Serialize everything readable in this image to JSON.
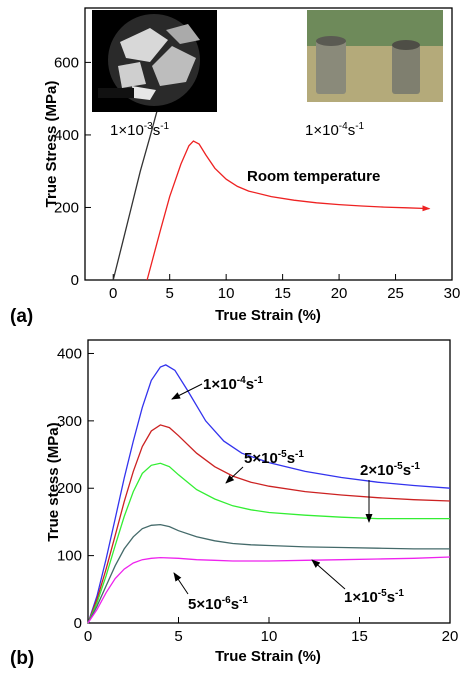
{
  "chart_data": [
    {
      "panel_label": "(a)",
      "type": "line",
      "xlabel": "True Strain (%)",
      "ylabel": "True Stress (MPa)",
      "xlim": [
        -2.5,
        30
      ],
      "ylim": [
        0,
        750
      ],
      "xticks": [
        0,
        5,
        10,
        15,
        20,
        25,
        30
      ],
      "yticks": [
        0,
        200,
        400,
        600
      ],
      "grid": false,
      "series": [
        {
          "color": "#333333",
          "points": [
            [
              0.0,
              0
            ],
            [
              0.8,
              100
            ],
            [
              1.6,
              200
            ],
            [
              2.4,
              300
            ],
            [
              3.3,
              400
            ],
            [
              4.0,
              480
            ]
          ]
        },
        {
          "color": "#ee2222",
          "points": [
            [
              3.0,
              0
            ],
            [
              3.6,
              70
            ],
            [
              4.2,
              140
            ],
            [
              5.0,
              230
            ],
            [
              6.0,
              320
            ],
            [
              6.7,
              370
            ],
            [
              7.1,
              383
            ],
            [
              7.6,
              375
            ],
            [
              8.2,
              345
            ],
            [
              9.0,
              308
            ],
            [
              10.0,
              278
            ],
            [
              11.0,
              258
            ],
            [
              12.0,
              245
            ],
            [
              14.0,
              230
            ],
            [
              16.0,
              220
            ],
            [
              18.0,
              213
            ],
            [
              20.0,
              208
            ],
            [
              22.0,
              204
            ],
            [
              24.0,
              201
            ],
            [
              26.0,
              199
            ],
            [
              28.0,
              197
            ]
          ]
        }
      ],
      "annotations": [
        {
          "base": "1×10",
          "exp": "-3",
          "unit": "s",
          "uexp": "-1"
        },
        {
          "base": "1×10",
          "exp": "-4",
          "unit": "s",
          "uexp": "-1"
        },
        {
          "text": "Room temperature"
        }
      ],
      "photos": [
        "sem-micrograph-inset",
        "cylinder-specimens-photo"
      ]
    },
    {
      "panel_label": "(b)",
      "type": "line",
      "xlabel": "True Strain (%)",
      "ylabel": "True stess (MPa)",
      "xlim": [
        0,
        20
      ],
      "ylim": [
        0,
        420
      ],
      "xticks": [
        0,
        5,
        10,
        15,
        20
      ],
      "yticks": [
        0,
        100,
        200,
        300,
        400
      ],
      "grid": false,
      "series": [
        {
          "color": "#3333ee",
          "points": [
            [
              0,
              0
            ],
            [
              0.5,
              40
            ],
            [
              1,
              95
            ],
            [
              1.5,
              155
            ],
            [
              2,
              215
            ],
            [
              2.5,
              270
            ],
            [
              3,
              320
            ],
            [
              3.5,
              360
            ],
            [
              4,
              380
            ],
            [
              4.3,
              383
            ],
            [
              4.8,
              375
            ],
            [
              5.5,
              345
            ],
            [
              6.5,
              300
            ],
            [
              7.5,
              270
            ],
            [
              8.5,
              252
            ],
            [
              10,
              238
            ],
            [
              12,
              225
            ],
            [
              14,
              216
            ],
            [
              16,
              209
            ],
            [
              18,
              204
            ],
            [
              20,
              200
            ]
          ]
        },
        {
          "color": "#cc2222",
          "points": [
            [
              0,
              0
            ],
            [
              0.5,
              35
            ],
            [
              1,
              80
            ],
            [
              1.5,
              130
            ],
            [
              2,
              180
            ],
            [
              2.5,
              225
            ],
            [
              3,
              262
            ],
            [
              3.5,
              285
            ],
            [
              4,
              294
            ],
            [
              4.5,
              290
            ],
            [
              5,
              278
            ],
            [
              6,
              252
            ],
            [
              7,
              232
            ],
            [
              8,
              218
            ],
            [
              9,
              209
            ],
            [
              10,
              203
            ],
            [
              12,
              195
            ],
            [
              14,
              190
            ],
            [
              16,
              186
            ],
            [
              18,
              183
            ],
            [
              20,
              181
            ]
          ]
        },
        {
          "color": "#33ee33",
          "points": [
            [
              0,
              0
            ],
            [
              0.5,
              30
            ],
            [
              1,
              70
            ],
            [
              1.5,
              115
            ],
            [
              2,
              158
            ],
            [
              2.5,
              195
            ],
            [
              3,
              222
            ],
            [
              3.5,
              234
            ],
            [
              4,
              237
            ],
            [
              4.5,
              232
            ],
            [
              5,
              220
            ],
            [
              6,
              198
            ],
            [
              7,
              184
            ],
            [
              8,
              174
            ],
            [
              9,
              168
            ],
            [
              10,
              164
            ],
            [
              12,
              160
            ],
            [
              14,
              157
            ],
            [
              16,
              155
            ],
            [
              18,
              155
            ],
            [
              20,
              155
            ]
          ]
        },
        {
          "color": "#446a6a",
          "points": [
            [
              0,
              0
            ],
            [
              0.5,
              25
            ],
            [
              1,
              55
            ],
            [
              1.5,
              85
            ],
            [
              2,
              110
            ],
            [
              2.5,
              128
            ],
            [
              3,
              140
            ],
            [
              3.5,
              145
            ],
            [
              4,
              146
            ],
            [
              4.5,
              143
            ],
            [
              5,
              137
            ],
            [
              6,
              128
            ],
            [
              7,
              122
            ],
            [
              8,
              118
            ],
            [
              9,
              116
            ],
            [
              10,
              115
            ],
            [
              12,
              113
            ],
            [
              14,
              112
            ],
            [
              16,
              111
            ],
            [
              18,
              110
            ],
            [
              20,
              110
            ]
          ]
        },
        {
          "color": "#ee22ee",
          "points": [
            [
              0,
              0
            ],
            [
              0.5,
              20
            ],
            [
              1,
              45
            ],
            [
              1.5,
              66
            ],
            [
              2,
              80
            ],
            [
              2.5,
              89
            ],
            [
              3,
              94
            ],
            [
              3.5,
              96
            ],
            [
              4,
              97
            ],
            [
              5,
              96
            ],
            [
              6,
              94
            ],
            [
              7,
              93
            ],
            [
              8,
              92
            ],
            [
              10,
              92
            ],
            [
              12,
              93
            ],
            [
              14,
              94
            ],
            [
              16,
              95
            ],
            [
              18,
              96
            ],
            [
              20,
              98
            ]
          ]
        }
      ],
      "annotations": [
        {
          "base": "1×10",
          "exp": "-4",
          "unit": "s",
          "uexp": "-1"
        },
        {
          "base": "5×10",
          "exp": "-5",
          "unit": "s",
          "uexp": "-1"
        },
        {
          "base": "2×10",
          "exp": "-5",
          "unit": "s",
          "uexp": "-1"
        },
        {
          "base": "5×10",
          "exp": "-6",
          "unit": "s",
          "uexp": "-1"
        },
        {
          "base": "1×10",
          "exp": "-5",
          "unit": "s",
          "uexp": "-1"
        }
      ]
    }
  ]
}
